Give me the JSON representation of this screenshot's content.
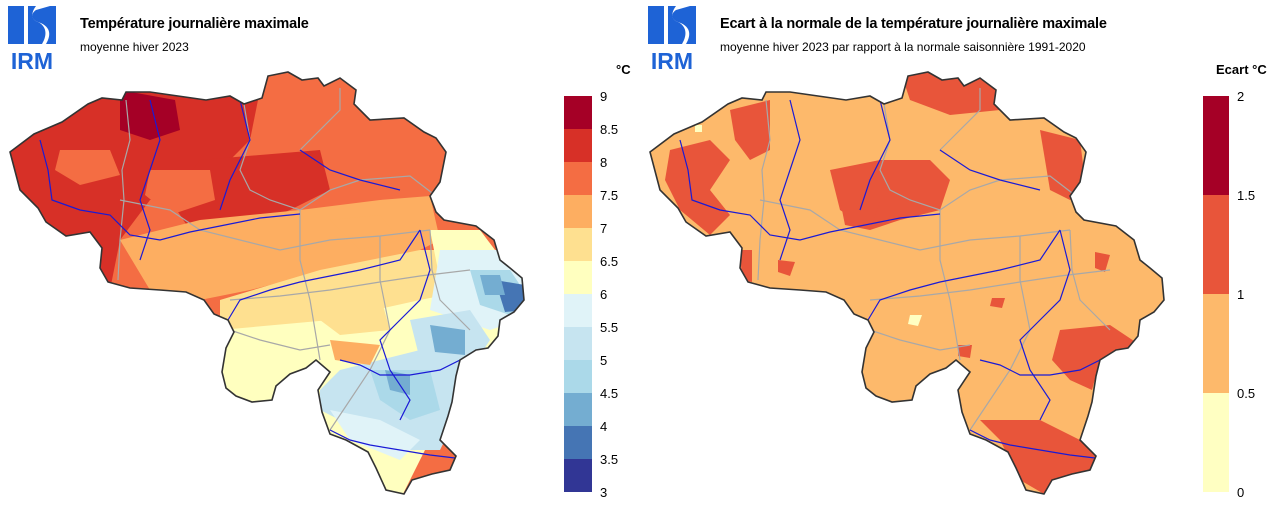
{
  "panels": [
    {
      "logo_text": "IRM",
      "title": "Température journalière maximale",
      "subtitle": "moyenne hiver 2023",
      "unit": "°C",
      "legend_ticks": [
        "9",
        "8.5",
        "8",
        "7.5",
        "7",
        "6.5",
        "6",
        "5.5",
        "5",
        "4.5",
        "4",
        "3.5",
        "3"
      ],
      "legend_colors": [
        "#a50026",
        "#d73027",
        "#f46d43",
        "#fdae61",
        "#fee090",
        "#ffffbf",
        "#e0f3f8",
        "#c6e4f0",
        "#abd9e9",
        "#74add1",
        "#4575b4",
        "#313695"
      ]
    },
    {
      "logo_text": "IRM",
      "title": "Ecart à la normale de la température journalière maximale",
      "subtitle": "moyenne hiver 2023 par rapport à la normale saisonnière 1991-2020",
      "unit": "Ecart °C",
      "legend_ticks": [
        "2",
        "1.5",
        "1",
        "0.5",
        "0"
      ],
      "legend_colors": [
        "#a50026",
        "#e8553a",
        "#fdb96b",
        "#ffffc2"
      ]
    }
  ]
}
